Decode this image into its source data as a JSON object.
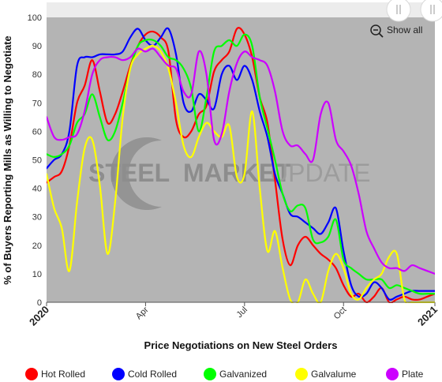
{
  "chart_data": {
    "type": "line",
    "title": "",
    "xlabel": "Price Negotiations on New Steel Orders",
    "ylabel": "% of Buyers Reporting Mills as Willing to Negotiate",
    "ylim": [
      0,
      100
    ],
    "yticks": [
      0,
      10,
      20,
      30,
      40,
      50,
      60,
      70,
      80,
      90,
      100
    ],
    "xlim": [
      0,
      51
    ],
    "xticks": [
      {
        "x": 0,
        "label": "2020",
        "edge": true
      },
      {
        "x": 13,
        "label": "Apr",
        "edge": false
      },
      {
        "x": 26,
        "label": "Jul",
        "edge": false
      },
      {
        "x": 39,
        "label": "Oct",
        "edge": false
      },
      {
        "x": 51,
        "label": "2021",
        "edge": true
      }
    ],
    "grid": false,
    "legend_position": "bottom",
    "series": [
      {
        "name": "Hot Rolled",
        "color": "#ff0000",
        "values": [
          42,
          44,
          46,
          55,
          70,
          76,
          85,
          74,
          63,
          66,
          74,
          83,
          90,
          94,
          95,
          93,
          88,
          64,
          58,
          60,
          66,
          69,
          81,
          85,
          88,
          96,
          94,
          86,
          72,
          63,
          43,
          22,
          13,
          20,
          23,
          20,
          17,
          15,
          12,
          6,
          2,
          3,
          0,
          2,
          5,
          0,
          1,
          2,
          1,
          1,
          2,
          3
        ]
      },
      {
        "name": "Cold Rolled",
        "color": "#0000ff",
        "values": [
          47,
          50,
          52,
          60,
          83,
          86,
          86,
          87,
          87,
          87,
          88,
          93,
          96,
          92,
          90,
          93,
          96,
          87,
          70,
          67,
          73,
          71,
          68,
          80,
          83,
          78,
          83,
          78,
          67,
          58,
          45,
          38,
          31,
          30,
          28,
          26,
          24,
          28,
          33,
          18,
          6,
          2,
          3,
          7,
          5,
          1,
          2,
          3,
          4,
          4,
          4,
          4
        ]
      },
      {
        "name": "Galvanized",
        "color": "#00ff00",
        "values": [
          52,
          51,
          52,
          55,
          63,
          66,
          73,
          65,
          57,
          60,
          70,
          82,
          90,
          92,
          92,
          90,
          86,
          85,
          82,
          75,
          60,
          72,
          88,
          90,
          92,
          90,
          94,
          90,
          72,
          61,
          50,
          38,
          32,
          34,
          33,
          22,
          21,
          23,
          29,
          15,
          12,
          10,
          8,
          8,
          8,
          5,
          6,
          5,
          4,
          3,
          3,
          3
        ]
      },
      {
        "name": "Galvalume",
        "color": "#ffff00",
        "values": [
          45,
          33,
          26,
          11,
          35,
          54,
          57,
          41,
          17,
          35,
          65,
          82,
          87,
          89,
          90,
          88,
          82,
          70,
          55,
          51,
          58,
          63,
          60,
          58,
          62,
          44,
          45,
          67,
          40,
          18,
          25,
          12,
          1,
          0,
          8,
          3,
          0,
          11,
          17,
          12,
          3,
          1,
          5,
          8,
          10,
          16,
          17,
          1,
          0,
          0,
          0,
          0
        ]
      },
      {
        "name": "Plate",
        "color": "#cc00ff",
        "values": [
          65,
          58,
          57,
          58,
          59,
          67,
          80,
          85,
          86,
          86,
          85,
          86,
          89,
          88,
          89,
          86,
          83,
          82,
          74,
          73,
          88,
          80,
          57,
          59,
          74,
          84,
          88,
          86,
          85,
          83,
          74,
          60,
          55,
          55,
          52,
          50,
          66,
          70,
          57,
          53,
          48,
          38,
          25,
          19,
          14,
          12,
          12,
          11,
          13,
          12,
          11,
          10
        ]
      }
    ]
  },
  "buttons": {
    "show_all": "Show all"
  },
  "watermark": {
    "part1": "STEEL",
    "part2": "MARKET",
    "part3": "UPDATE"
  }
}
